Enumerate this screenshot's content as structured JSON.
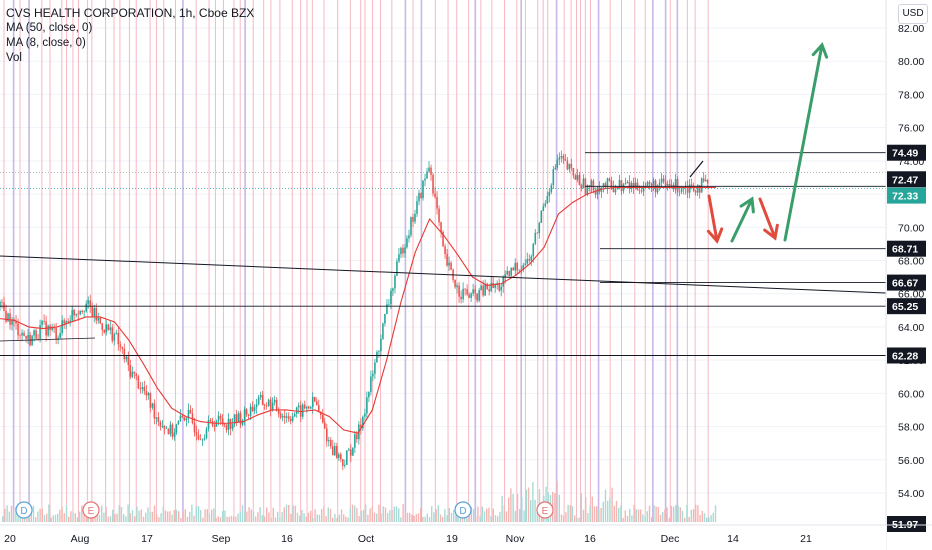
{
  "legend": {
    "title": "CVS HEALTH CORPORATION, 1h, Cboe BZX",
    "ma50": "MA (50, close, 0)",
    "ma8": "MA (8, close, 0)",
    "vol": "Vol"
  },
  "currency_label": "USD",
  "colors": {
    "up": "#26a69a",
    "down": "#ef5350",
    "ma": "#e53935",
    "arrow_green": "#3a9e6a",
    "arrow_red": "#e04b3c",
    "event_line": "#f7b8c2",
    "event_line_alt": "#c9b8e8",
    "level_line": "#131722"
  },
  "chart_data": {
    "type": "line",
    "title": "CVS HEALTH CORPORATION, 1h, Cboe BZX",
    "ylabel": "USD",
    "ylim": [
      52.5,
      83.5
    ],
    "y_ticks": [
      "82.00",
      "80.00",
      "78.00",
      "76.00",
      "74.00",
      "72.00",
      "70.00",
      "68.00",
      "66.00",
      "64.00",
      "62.00",
      "60.00",
      "58.00",
      "56.00",
      "54.00"
    ],
    "x_ticks": [
      "20",
      "Aug",
      "17",
      "Sep",
      "16",
      "Oct",
      "19",
      "Nov",
      "16",
      "Dec",
      "14",
      "21"
    ],
    "series": [
      {
        "name": "",
        "description_points": "approximate hourly close path",
        "x": [
          0,
          2,
          4,
          6,
          8,
          10,
          12,
          14,
          16,
          18,
          20,
          22,
          24,
          26,
          28,
          30,
          32,
          34,
          36,
          38,
          40,
          42,
          44,
          46,
          48,
          50,
          52,
          54,
          56,
          58,
          60,
          62,
          64,
          66,
          68,
          70,
          72,
          74,
          76,
          78,
          80,
          82,
          84,
          86,
          88,
          90,
          92,
          94,
          96,
          98,
          100
        ],
        "values": [
          65.2,
          64.1,
          63.2,
          64.0,
          63.6,
          64.8,
          65.4,
          64.2,
          63.5,
          61.5,
          60.2,
          58.5,
          57.6,
          58.8,
          57.5,
          58.4,
          58.2,
          58.6,
          59.5,
          59.3,
          58.6,
          58.9,
          59.5,
          57.0,
          55.8,
          57.5,
          61.0,
          65.0,
          68.5,
          71.0,
          73.8,
          68.2,
          66.2,
          65.8,
          66.3,
          66.5,
          67.6,
          68.0,
          71.5,
          74.2,
          73.2,
          72.3,
          72.5,
          72.5,
          72.5,
          72.5,
          72.5,
          72.5,
          72.5,
          72.5,
          72.5
        ]
      }
    ],
    "ma_values": [
      64.5,
      64.4,
      64.0,
      63.9,
      64.0,
      64.3,
      64.6,
      64.6,
      64.3,
      63.2,
      61.8,
      60.3,
      59.1,
      58.6,
      58.3,
      58.2,
      58.2,
      58.3,
      58.7,
      59.0,
      59.0,
      58.9,
      59.0,
      58.6,
      57.8,
      57.6,
      59.0,
      62.0,
      65.5,
      68.5,
      70.5,
      69.5,
      68.3,
      67.0,
      66.5,
      66.6,
      67.1,
      67.8,
      68.8,
      70.8,
      71.5,
      72.0,
      72.3,
      72.4,
      72.4,
      72.4,
      72.4,
      72.4,
      72.4,
      72.4,
      72.4
    ],
    "horizontal_levels": [
      74.49,
      72.47,
      68.71,
      66.67,
      65.25,
      62.28
    ],
    "last_price": 72.33
  },
  "price_labels": {
    "l1": "74.49",
    "l2": "72.47",
    "l3": "72.33",
    "l4": "68.71",
    "l5": "66.67",
    "l6": "65.25",
    "l7": "62.28",
    "cut_bottom": "51.97"
  },
  "event_markers": [
    {
      "letter": "D",
      "color": "#5aa3d8"
    },
    {
      "letter": "E",
      "color": "#e57373"
    },
    {
      "letter": "D",
      "color": "#5aa3d8"
    },
    {
      "letter": "E",
      "color": "#e57373"
    }
  ]
}
